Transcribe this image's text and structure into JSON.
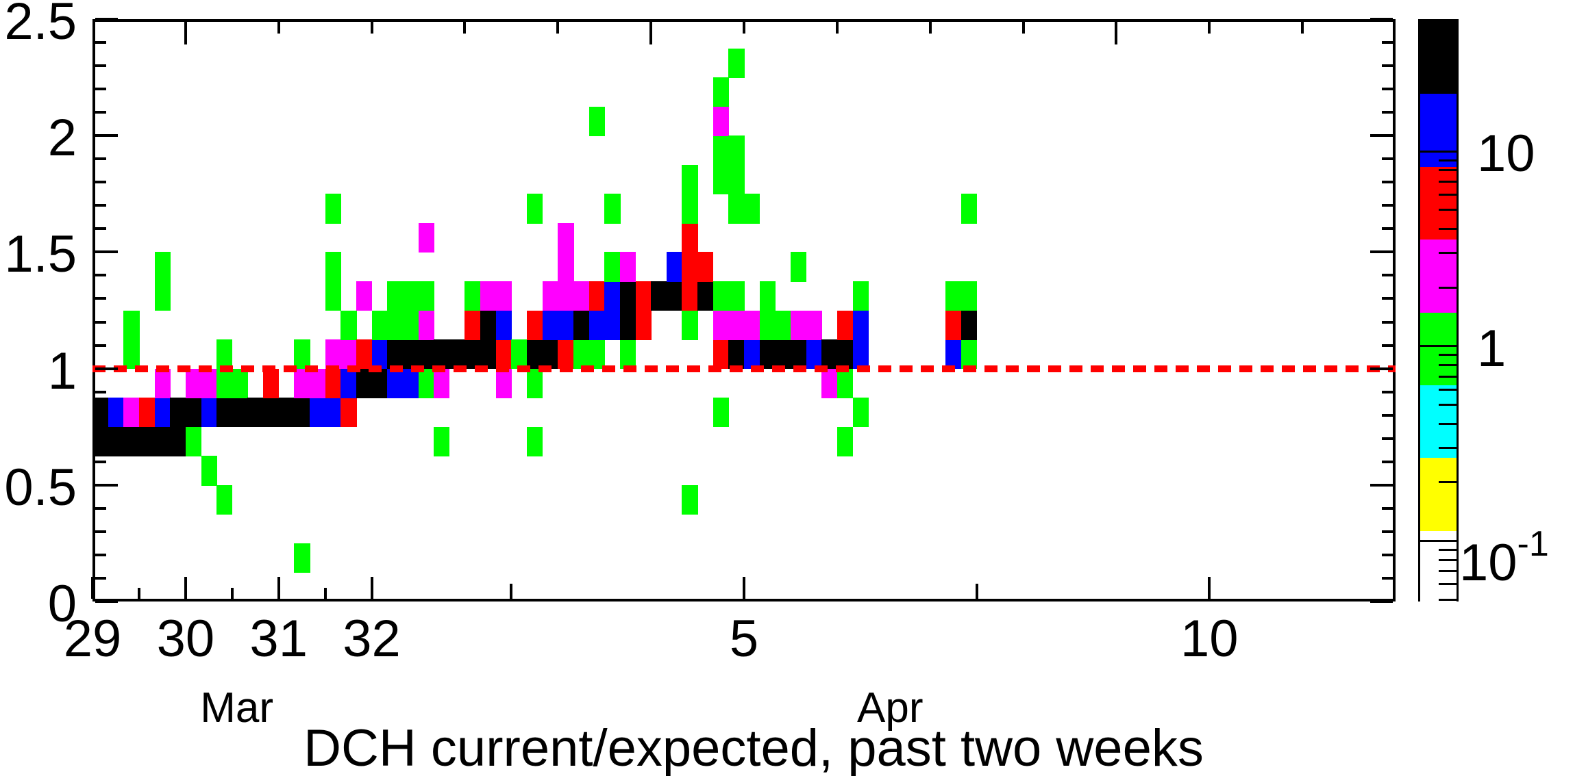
{
  "chart_data": {
    "type": "heatmap",
    "title": "DCH current/expected, past two weeks",
    "x_axis": {
      "unit": "date",
      "start": "Mar 29",
      "span_days": 14,
      "labeled_ticks": [
        {
          "day": 0,
          "label": "29"
        },
        {
          "day": 1,
          "label": "30"
        },
        {
          "day": 2,
          "label": "31"
        },
        {
          "day": 3,
          "label": "32"
        },
        {
          "day": 7,
          "label": "5"
        },
        {
          "day": 12,
          "label": "10"
        }
      ],
      "minor_tick_days": [
        0.5,
        1.5,
        2.5
      ],
      "medium_tick_days": [
        4.5,
        9.5
      ],
      "top_major_tick_days": [
        1,
        6,
        11
      ],
      "top_minor_tick_days": [
        2,
        3,
        4,
        5,
        7,
        8,
        9,
        10,
        12,
        13
      ],
      "month_labels": [
        {
          "label": "Mar",
          "day": 1.55
        },
        {
          "label": "Apr",
          "day": 8.57
        }
      ]
    },
    "y_axis": {
      "min": 0,
      "max": 2.5,
      "major_step": 0.5,
      "minor_step": 0.1,
      "labels": [
        {
          "value": 0,
          "label": "0"
        },
        {
          "value": 0.5,
          "label": "0.5"
        },
        {
          "value": 1,
          "label": "1"
        },
        {
          "value": 1.5,
          "label": "1.5"
        },
        {
          "value": 2,
          "label": "2"
        },
        {
          "value": 2.5,
          "label": "2.5"
        }
      ]
    },
    "z_axis": {
      "scale": "log",
      "min": 0.049,
      "max": 47.6,
      "palette_top_to_bottom": [
        "#000000",
        "#0000ff",
        "#ff0000",
        "#ff00ff",
        "#00ff00",
        "#00ffff",
        "#ffff00",
        "#ffffff"
      ],
      "major_ticks": [
        {
          "value": 10,
          "label": "10",
          "exponent": ""
        },
        {
          "value": 1,
          "label": "1",
          "exponent": ""
        },
        {
          "value": 0.1,
          "label": "10",
          "exponent": "-1"
        }
      ]
    },
    "reference_line": {
      "y": 1,
      "color": "#ff0000",
      "style": "dashed"
    },
    "bin_width_days": 0.1666667,
    "bin_height_value": 0.125,
    "cell_colors": {
      "K": "#000000",
      "B": "#0000ff",
      "R": "#ff0000",
      "M": "#ff00ff",
      "G": "#00ff00"
    },
    "cells": [
      [
        0,
        5,
        "K"
      ],
      [
        0,
        6,
        "K"
      ],
      [
        1,
        5,
        "K"
      ],
      [
        1,
        6,
        "B"
      ],
      [
        2,
        5,
        "K"
      ],
      [
        2,
        6,
        "M"
      ],
      [
        2,
        8,
        "G"
      ],
      [
        2,
        9,
        "G"
      ],
      [
        3,
        5,
        "K"
      ],
      [
        3,
        6,
        "R"
      ],
      [
        4,
        5,
        "K"
      ],
      [
        4,
        6,
        "B"
      ],
      [
        4,
        7,
        "M"
      ],
      [
        4,
        10,
        "G"
      ],
      [
        4,
        11,
        "G"
      ],
      [
        5,
        5,
        "K"
      ],
      [
        5,
        6,
        "K"
      ],
      [
        6,
        5,
        "G"
      ],
      [
        6,
        6,
        "K"
      ],
      [
        6,
        7,
        "M"
      ],
      [
        7,
        4,
        "G"
      ],
      [
        7,
        6,
        "B"
      ],
      [
        7,
        7,
        "M"
      ],
      [
        8,
        3,
        "G"
      ],
      [
        8,
        6,
        "K"
      ],
      [
        8,
        7,
        "G"
      ],
      [
        8,
        8,
        "G"
      ],
      [
        9,
        6,
        "K"
      ],
      [
        9,
        7,
        "G"
      ],
      [
        10,
        6,
        "K"
      ],
      [
        11,
        6,
        "K"
      ],
      [
        11,
        7,
        "R"
      ],
      [
        12,
        6,
        "K"
      ],
      [
        13,
        1,
        "G"
      ],
      [
        13,
        6,
        "K"
      ],
      [
        13,
        7,
        "M"
      ],
      [
        13,
        8,
        "G"
      ],
      [
        14,
        6,
        "B"
      ],
      [
        14,
        7,
        "M"
      ],
      [
        15,
        6,
        "B"
      ],
      [
        15,
        7,
        "R"
      ],
      [
        15,
        8,
        "M"
      ],
      [
        15,
        10,
        "G"
      ],
      [
        15,
        11,
        "G"
      ],
      [
        15,
        13,
        "G"
      ],
      [
        16,
        6,
        "R"
      ],
      [
        16,
        7,
        "B"
      ],
      [
        16,
        8,
        "M"
      ],
      [
        16,
        9,
        "G"
      ],
      [
        17,
        7,
        "K"
      ],
      [
        17,
        8,
        "R"
      ],
      [
        17,
        10,
        "M"
      ],
      [
        18,
        7,
        "K"
      ],
      [
        18,
        8,
        "B"
      ],
      [
        18,
        9,
        "G"
      ],
      [
        19,
        7,
        "B"
      ],
      [
        19,
        8,
        "K"
      ],
      [
        19,
        9,
        "G"
      ],
      [
        19,
        10,
        "G"
      ],
      [
        20,
        7,
        "B"
      ],
      [
        20,
        8,
        "K"
      ],
      [
        20,
        9,
        "G"
      ],
      [
        20,
        10,
        "G"
      ],
      [
        21,
        7,
        "G"
      ],
      [
        21,
        8,
        "K"
      ],
      [
        21,
        9,
        "M"
      ],
      [
        21,
        10,
        "G"
      ],
      [
        21,
        12,
        "M"
      ],
      [
        22,
        5,
        "G"
      ],
      [
        22,
        7,
        "M"
      ],
      [
        22,
        8,
        "K"
      ],
      [
        23,
        8,
        "K"
      ],
      [
        24,
        8,
        "K"
      ],
      [
        24,
        9,
        "R"
      ],
      [
        24,
        10,
        "G"
      ],
      [
        25,
        8,
        "K"
      ],
      [
        25,
        9,
        "K"
      ],
      [
        25,
        10,
        "M"
      ],
      [
        26,
        7,
        "M"
      ],
      [
        26,
        8,
        "R"
      ],
      [
        26,
        9,
        "B"
      ],
      [
        26,
        10,
        "M"
      ],
      [
        27,
        8,
        "G"
      ],
      [
        28,
        5,
        "G"
      ],
      [
        28,
        7,
        "G"
      ],
      [
        28,
        8,
        "K"
      ],
      [
        28,
        9,
        "R"
      ],
      [
        28,
        13,
        "G"
      ],
      [
        29,
        8,
        "K"
      ],
      [
        29,
        9,
        "B"
      ],
      [
        29,
        10,
        "M"
      ],
      [
        30,
        8,
        "R"
      ],
      [
        30,
        9,
        "B"
      ],
      [
        30,
        10,
        "M"
      ],
      [
        30,
        11,
        "M"
      ],
      [
        30,
        12,
        "M"
      ],
      [
        31,
        8,
        "G"
      ],
      [
        31,
        9,
        "K"
      ],
      [
        31,
        10,
        "M"
      ],
      [
        32,
        8,
        "G"
      ],
      [
        32,
        9,
        "B"
      ],
      [
        32,
        10,
        "R"
      ],
      [
        32,
        16,
        "G"
      ],
      [
        33,
        9,
        "B"
      ],
      [
        33,
        10,
        "B"
      ],
      [
        33,
        11,
        "G"
      ],
      [
        33,
        13,
        "G"
      ],
      [
        34,
        8,
        "G"
      ],
      [
        34,
        9,
        "K"
      ],
      [
        34,
        10,
        "K"
      ],
      [
        34,
        11,
        "M"
      ],
      [
        35,
        9,
        "R"
      ],
      [
        35,
        10,
        "R"
      ],
      [
        36,
        10,
        "K"
      ],
      [
        37,
        10,
        "K"
      ],
      [
        37,
        11,
        "B"
      ],
      [
        38,
        3,
        "G"
      ],
      [
        38,
        9,
        "G"
      ],
      [
        38,
        10,
        "R"
      ],
      [
        38,
        11,
        "R"
      ],
      [
        38,
        12,
        "R"
      ],
      [
        38,
        13,
        "G"
      ],
      [
        38,
        14,
        "G"
      ],
      [
        39,
        10,
        "K"
      ],
      [
        39,
        11,
        "R"
      ],
      [
        40,
        6,
        "G"
      ],
      [
        40,
        8,
        "R"
      ],
      [
        40,
        9,
        "M"
      ],
      [
        40,
        10,
        "G"
      ],
      [
        40,
        14,
        "G"
      ],
      [
        40,
        15,
        "G"
      ],
      [
        40,
        16,
        "M"
      ],
      [
        40,
        17,
        "G"
      ],
      [
        41,
        8,
        "K"
      ],
      [
        41,
        9,
        "M"
      ],
      [
        41,
        10,
        "G"
      ],
      [
        41,
        13,
        "G"
      ],
      [
        41,
        14,
        "G"
      ],
      [
        41,
        15,
        "G"
      ],
      [
        41,
        18,
        "G"
      ],
      [
        42,
        8,
        "B"
      ],
      [
        42,
        9,
        "M"
      ],
      [
        42,
        13,
        "G"
      ],
      [
        43,
        8,
        "K"
      ],
      [
        43,
        9,
        "G"
      ],
      [
        43,
        10,
        "G"
      ],
      [
        44,
        8,
        "K"
      ],
      [
        44,
        9,
        "G"
      ],
      [
        45,
        8,
        "K"
      ],
      [
        45,
        9,
        "M"
      ],
      [
        45,
        11,
        "G"
      ],
      [
        46,
        8,
        "B"
      ],
      [
        46,
        9,
        "M"
      ],
      [
        47,
        7,
        "M"
      ],
      [
        47,
        8,
        "K"
      ],
      [
        48,
        5,
        "G"
      ],
      [
        48,
        7,
        "G"
      ],
      [
        48,
        8,
        "K"
      ],
      [
        48,
        9,
        "R"
      ],
      [
        49,
        6,
        "G"
      ],
      [
        49,
        8,
        "B"
      ],
      [
        49,
        9,
        "B"
      ],
      [
        49,
        10,
        "G"
      ],
      [
        55,
        8,
        "B"
      ],
      [
        55,
        9,
        "R"
      ],
      [
        55,
        10,
        "G"
      ],
      [
        56,
        8,
        "G"
      ],
      [
        56,
        9,
        "K"
      ],
      [
        56,
        10,
        "G"
      ],
      [
        56,
        13,
        "G"
      ]
    ]
  }
}
